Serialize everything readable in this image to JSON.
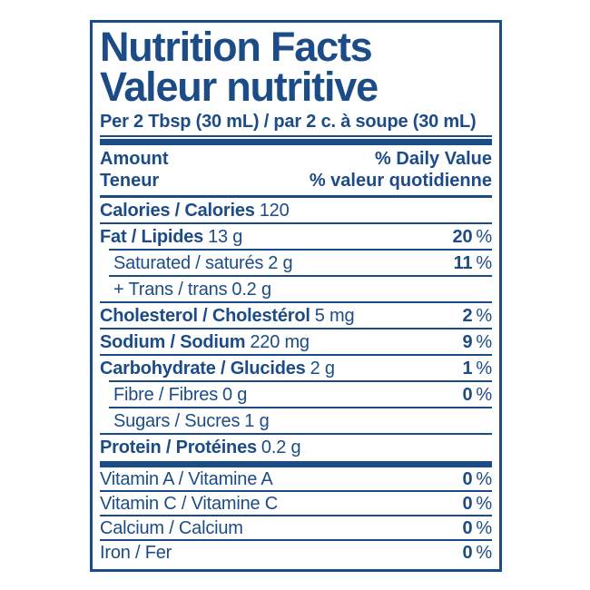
{
  "label": {
    "title_en": "Nutrition Facts",
    "title_fr": "Valeur nutritive",
    "serving": "Per 2 Tbsp (30 mL) / par 2 c. à soupe (30 mL)",
    "header": {
      "amount_en": "Amount",
      "amount_fr": "Teneur",
      "dv_en": "% Daily Value",
      "dv_fr": "% valeur quotidienne"
    },
    "rows": [
      {
        "name": "Calories / Calories",
        "amount": "120",
        "percent": "",
        "percent_sign": ""
      },
      {
        "name": "Fat / Lipides",
        "amount": "13 g",
        "percent": "20",
        "percent_sign": "%"
      },
      {
        "name": "Saturated / saturés",
        "amount": "2 g",
        "percent": "11",
        "percent_sign": "%"
      },
      {
        "name": "+ Trans / trans",
        "amount": "0.2 g",
        "percent": "",
        "percent_sign": ""
      },
      {
        "name": "Cholesterol / Cholestérol",
        "amount": "5 mg",
        "percent": "2",
        "percent_sign": "%"
      },
      {
        "name": "Sodium / Sodium",
        "amount": "220 mg",
        "percent": "9",
        "percent_sign": "%"
      },
      {
        "name": "Carbohydrate / Glucides",
        "amount": "2 g",
        "percent": "1",
        "percent_sign": "%"
      },
      {
        "name": "Fibre / Fibres",
        "amount": "0 g",
        "percent": "0",
        "percent_sign": "%"
      },
      {
        "name": "Sugars / Sucres",
        "amount": "1 g",
        "percent": "",
        "percent_sign": ""
      },
      {
        "name": "Protein / Protéines",
        "amount": "0.2 g",
        "percent": "",
        "percent_sign": ""
      },
      {
        "name": "Vitamin A / Vitamine A",
        "amount": "",
        "percent": "0",
        "percent_sign": "%"
      },
      {
        "name": "Vitamin C / Vitamine C",
        "amount": "",
        "percent": "0",
        "percent_sign": "%"
      },
      {
        "name": "Calcium / Calcium",
        "amount": "",
        "percent": "0",
        "percent_sign": "%"
      },
      {
        "name": "Iron / Fer",
        "amount": "",
        "percent": "0",
        "percent_sign": "%"
      }
    ],
    "colors": {
      "ink": "#1c4c87",
      "background": "#ffffff"
    }
  }
}
